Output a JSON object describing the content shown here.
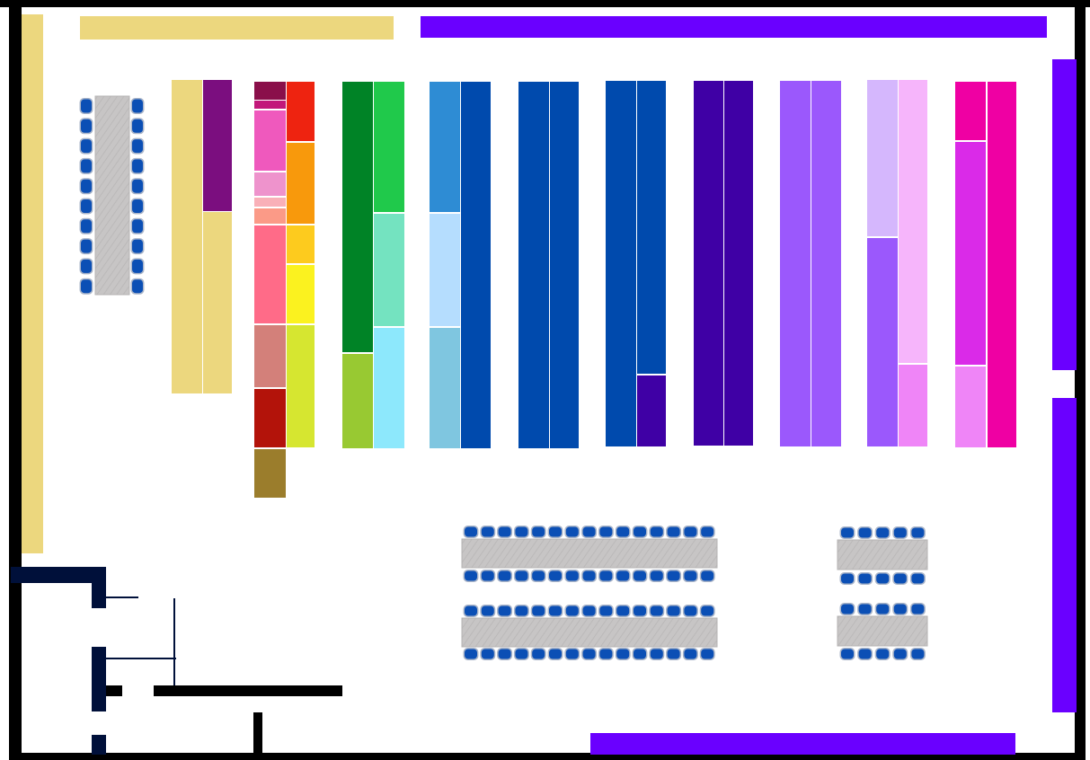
{
  "colors": {
    "wall": "#000000",
    "wall_navy": "#00103a",
    "shelf_tan": "#ecd77e",
    "wall_shelf_violet": "#6a00ff",
    "table_gray": "#c4c2c2",
    "chair_blue": "#0b4fb5",
    "chair_edge": "#a9b4c8"
  },
  "shelf_colors": [
    "#ecd77e",
    "#7b0e7f",
    "#8a0f4a",
    "#c2187a",
    "#ef59bd",
    "#ee93cc",
    "#f9b0b8",
    "#fb9a87",
    "#ff6b88",
    "#d3807a",
    "#b3130a",
    "#ee2310",
    "#f8990c",
    "#fdcb1e",
    "#fbf21f",
    "#d6e630",
    "#9b7d2c",
    "#008326",
    "#98c932",
    "#20c94b",
    "#74e3c0",
    "#8de8fc",
    "#2e8cd4",
    "#b5ddfe",
    "#7fc6e0",
    "#004aad",
    "#3f00a5",
    "#9b58fc",
    "#d5b7fd",
    "#f6b5fb",
    "#ef85f7",
    "#ef00a3",
    "#da2ae8"
  ],
  "icons": {
    "chair": "chair-icon",
    "table": "table-icon",
    "door": "door-icon"
  }
}
